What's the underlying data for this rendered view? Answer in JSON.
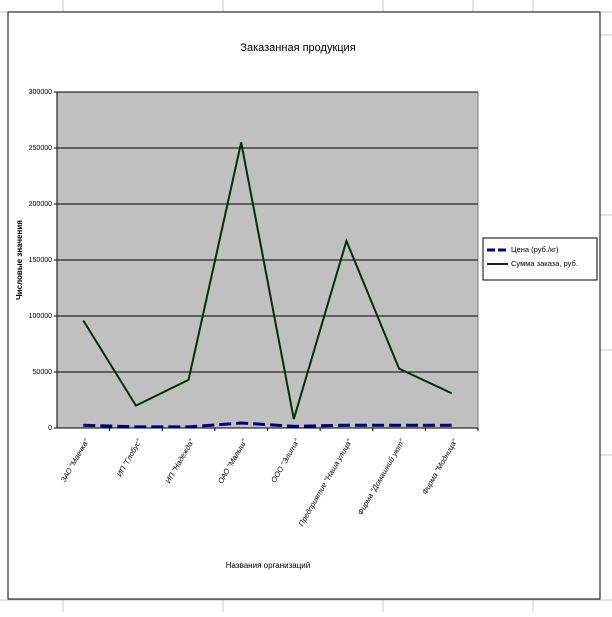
{
  "chart_data": {
    "type": "line",
    "title": "Заказанная продукция",
    "x_label": "Названия организаций",
    "y_label": "Числовые значения",
    "categories": [
      "ЗАО \"Маечка\"",
      "ИП \"Глобус\"",
      "ИП \"Надежда\"",
      "ОАО \"Малыш\"",
      "ООО \"Элита\"",
      "Предприятие \"Наша улица\"",
      "Фирма \"Домашний уют\"",
      "Фирма \"Модница\""
    ],
    "series": [
      {
        "name": "Цена (руб./кг)",
        "color": "#000080",
        "dashed": true,
        "values": [
          2500,
          1000,
          1000,
          4500,
          1500,
          2500,
          2500,
          2500
        ]
      },
      {
        "name": "Сумма заказа, руб.",
        "color": "#003300",
        "dashed": false,
        "values": [
          96000,
          20000,
          43000,
          255000,
          8000,
          167000,
          53000,
          31000
        ]
      }
    ],
    "ylim": [
      0,
      300000
    ],
    "yticks": [
      0,
      50000,
      100000,
      150000,
      200000,
      250000,
      300000
    ],
    "grid": true,
    "legend": "right"
  }
}
